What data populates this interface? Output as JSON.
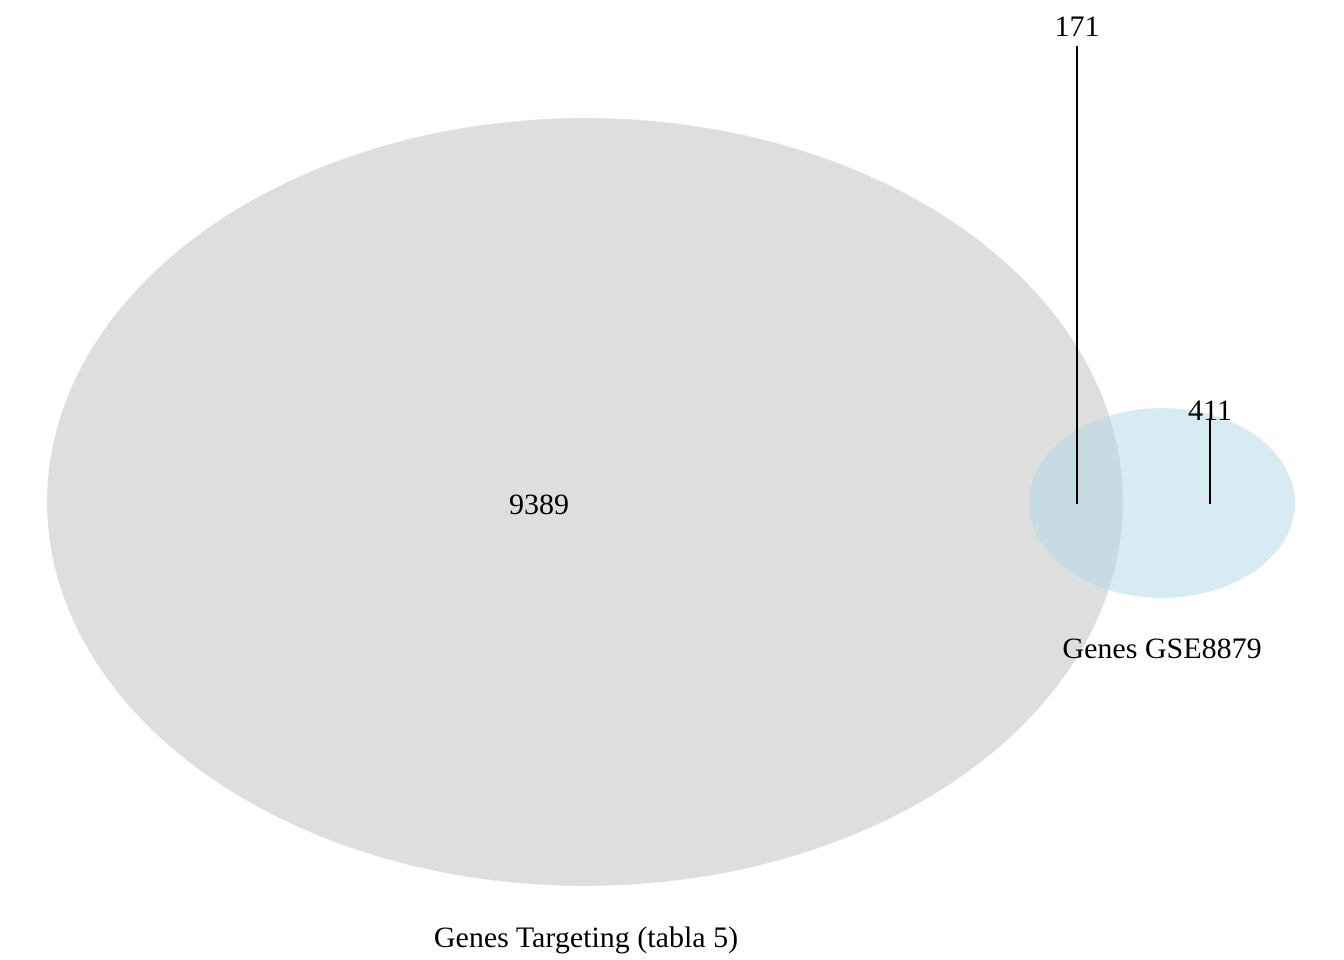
{
  "diagram": {
    "type": "venn",
    "sets": [
      {
        "id": "targeting",
        "label": "Genes Targeting (tabla 5)",
        "color": "#dedede"
      },
      {
        "id": "gse",
        "label": "Genes GSE8879",
        "color": "#add8e6"
      }
    ],
    "regions": {
      "targeting_only": "9389",
      "overlap": "171",
      "gse_only": "411"
    }
  }
}
